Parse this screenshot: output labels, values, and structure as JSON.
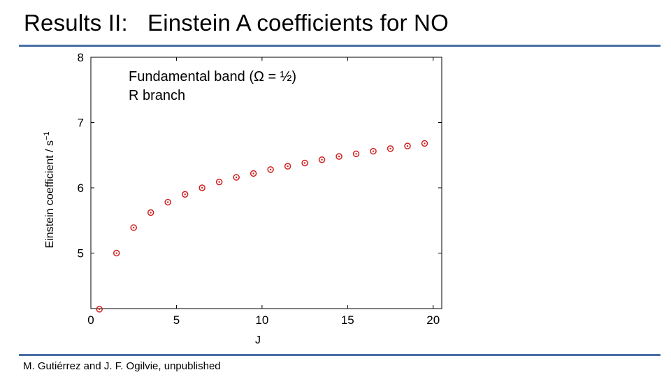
{
  "slide": {
    "title": "Results II:   Einstein A coefficients for NO",
    "footer": "M. Gutiérrez and J. F. Ogilvie, unpublished"
  },
  "colors": {
    "accent_rule": "#4a6fa5",
    "marker": "#d02020"
  },
  "chart_data": {
    "type": "scatter",
    "annotation_lines": [
      "Fundamental band (Ω = ½)",
      "R branch"
    ],
    "xlabel": "J",
    "ylabel_main": "Einstein coefficient / s",
    "ylabel_sup": "−1",
    "xlim": [
      0,
      20.5
    ],
    "ylim": [
      4.15,
      8
    ],
    "xticks": [
      0,
      5,
      10,
      15,
      20
    ],
    "yticks": [
      5,
      6,
      7,
      8
    ],
    "marker": "circle-dot",
    "grid": false,
    "series": [
      {
        "x": [
          0.5,
          1.5,
          2.5,
          3.5,
          4.5,
          5.5,
          6.5,
          7.5,
          8.5,
          9.5,
          10.5,
          11.5,
          12.5,
          13.5,
          14.5,
          15.5,
          16.5,
          17.5,
          18.5,
          19.5
        ],
        "y": [
          4.14,
          5.0,
          5.39,
          5.62,
          5.78,
          5.9,
          6.0,
          6.09,
          6.16,
          6.22,
          6.28,
          6.33,
          6.38,
          6.43,
          6.48,
          6.52,
          6.56,
          6.6,
          6.64,
          6.68
        ]
      }
    ]
  }
}
